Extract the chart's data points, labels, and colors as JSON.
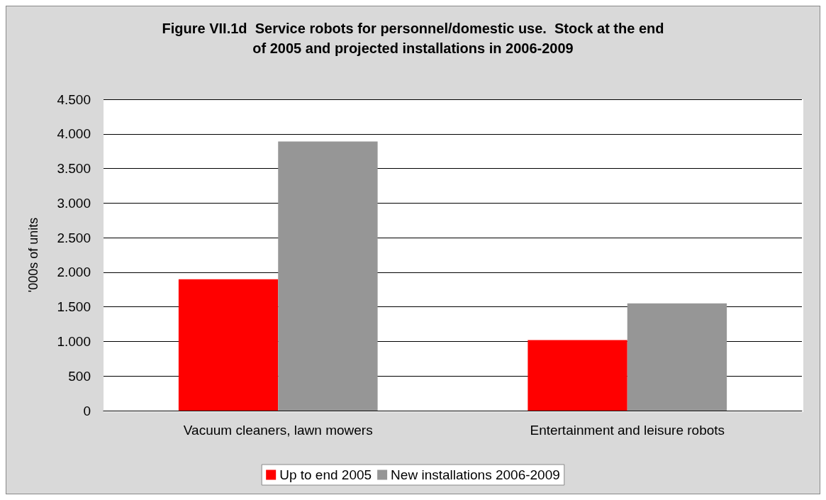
{
  "chart_data": {
    "type": "bar",
    "title": "Figure VII.1d  Service robots for personnel/domestic use.  Stock at the end\nof 2005 and projected installations in 2006-2009",
    "ylabel": "'000s of units",
    "categories": [
      "Vacuum cleaners, lawn mowers",
      "Entertainment and leisure robots"
    ],
    "series": [
      {
        "name": "Up to end 2005",
        "color": "#ff0000",
        "values": [
          1900,
          1020
        ]
      },
      {
        "name": "New installations 2006-2009",
        "color": "#969696",
        "values": [
          3890,
          1550
        ]
      }
    ],
    "ylim": [
      0,
      4500
    ],
    "yticks": [
      0,
      500,
      {
        "value": 1000,
        "label": "1.000"
      },
      {
        "value": 1500,
        "label": "1.500"
      },
      {
        "value": 2000,
        "label": "2.000"
      },
      {
        "value": 2500,
        "label": "2.500"
      },
      {
        "value": 3000,
        "label": "3.000"
      },
      {
        "value": 3500,
        "label": "3.500"
      },
      {
        "value": 4000,
        "label": "4.000"
      },
      {
        "value": 4500,
        "label": "4.500"
      }
    ],
    "grid": "y",
    "legend": "bottom"
  }
}
